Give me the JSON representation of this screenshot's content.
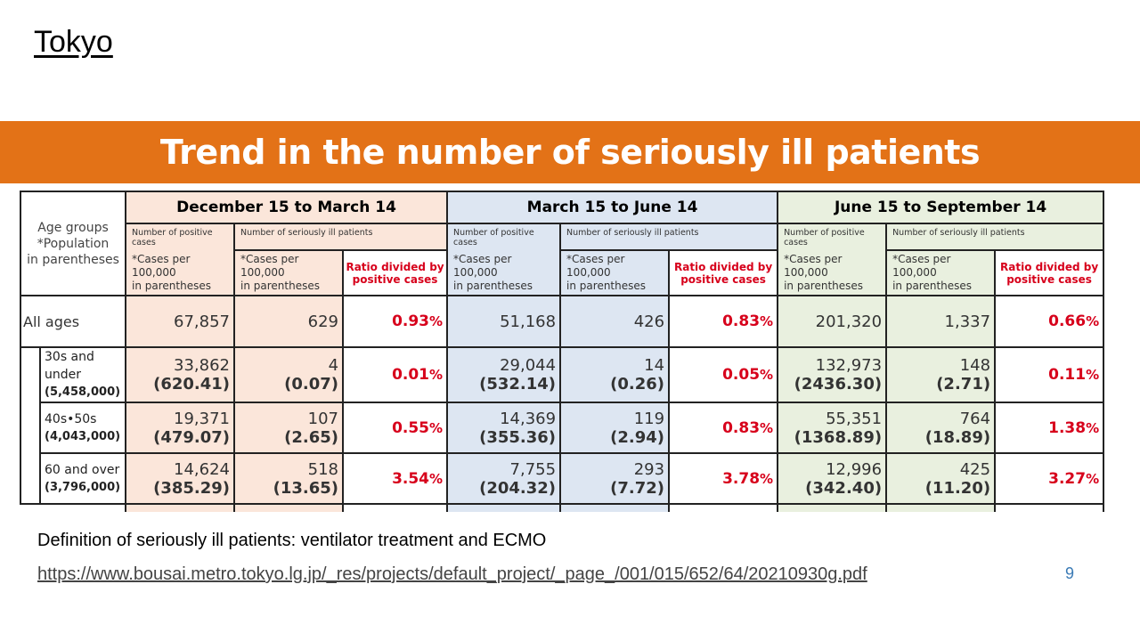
{
  "slide": {
    "title": "Tokyo",
    "banner": "Trend in the number of seriously ill patients",
    "definition": "Definition of seriously ill patients: ventilator treatment and ECMO",
    "link": "https://www.bousai.metro.tokyo.lg.jp/_res/projects/default_project/_page_/001/015/652/64/20210930g.pdf",
    "page_number": "9"
  },
  "table": {
    "age_header": [
      "Age groups",
      "*Population",
      "in parentheses"
    ],
    "periods": [
      "December 15 to March 14",
      "March 15 to June 14",
      "June 15 to September 14"
    ],
    "sub_headers": {
      "positive": "Number of positive cases",
      "seriously": "Number of seriously ill patients",
      "per100k_1": "*Cases per 100,000",
      "per100k_2": "in parentheses",
      "ratio_1": "Ratio divided by",
      "ratio_2": "positive cases"
    },
    "all_ages": {
      "label": "All ages",
      "cells": [
        {
          "positive": "67,857",
          "serious": "629",
          "ratio": "0.93"
        },
        {
          "positive": "51,168",
          "serious": "426",
          "ratio": "0.83"
        },
        {
          "positive": "201,320",
          "serious": "1,337",
          "ratio": "0.66"
        }
      ]
    },
    "pct_sign": "%",
    "rows": [
      {
        "label": "30s and under",
        "population": "(5,458,000)",
        "cells": [
          {
            "positive": "33,862",
            "positive_rate": "(620.41)",
            "serious": "4",
            "serious_rate": "(0.07)",
            "ratio": "0.01"
          },
          {
            "positive": "29,044",
            "positive_rate": "(532.14)",
            "serious": "14",
            "serious_rate": "(0.26)",
            "ratio": "0.05"
          },
          {
            "positive": "132,973",
            "positive_rate": "(2436.30)",
            "serious": "148",
            "serious_rate": "(2.71)",
            "ratio": "0.11"
          }
        ]
      },
      {
        "label": "40s•50s",
        "population": "(4,043,000)",
        "cells": [
          {
            "positive": "19,371",
            "positive_rate": "(479.07)",
            "serious": "107",
            "serious_rate": "(2.65)",
            "ratio": "0.55"
          },
          {
            "positive": "14,369",
            "positive_rate": "(355.36)",
            "serious": "119",
            "serious_rate": "(2.94)",
            "ratio": "0.83"
          },
          {
            "positive": "55,351",
            "positive_rate": "(1368.89)",
            "serious": "764",
            "serious_rate": "(18.89)",
            "ratio": "1.38"
          }
        ]
      },
      {
        "label": "60 and over",
        "population": "(3,796,000)",
        "cells": [
          {
            "positive": "14,624",
            "positive_rate": "(385.29)",
            "serious": "518",
            "serious_rate": "(13.65)",
            "ratio": "3.54"
          },
          {
            "positive": "7,755",
            "positive_rate": "(204.32)",
            "serious": "293",
            "serious_rate": "(7.72)",
            "ratio": "3.78"
          },
          {
            "positive": "12,996",
            "positive_rate": "(342.40)",
            "serious": "425",
            "serious_rate": "(11.20)",
            "ratio": "3.27"
          }
        ]
      }
    ]
  }
}
